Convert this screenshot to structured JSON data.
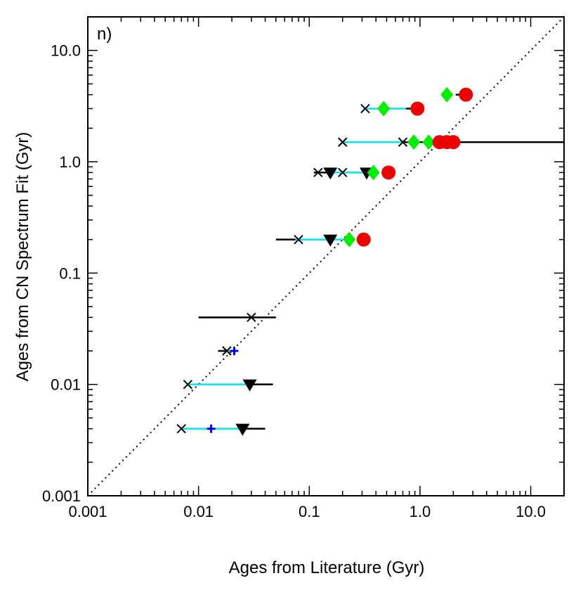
{
  "chart_data": {
    "type": "scatter",
    "panel_label": "n)",
    "xlabel": "Ages from Literature (Gyr)",
    "ylabel": "Ages from CN Spectrum Fit (Gyr)",
    "xscale": "log",
    "yscale": "log",
    "xlim": [
      0.001,
      20
    ],
    "ylim": [
      0.001,
      20
    ],
    "x_ticks": [
      {
        "value": 0.001,
        "label": "0.001"
      },
      {
        "value": 0.01,
        "label": "0.01"
      },
      {
        "value": 0.1,
        "label": "0.1"
      },
      {
        "value": 1,
        "label": "1.0"
      },
      {
        "value": 10,
        "label": "10.0"
      }
    ],
    "y_ticks": [
      {
        "value": 0.001,
        "label": "0.001"
      },
      {
        "value": 0.01,
        "label": "0.01"
      },
      {
        "value": 0.1,
        "label": "0.1"
      },
      {
        "value": 1,
        "label": "1.0"
      },
      {
        "value": 10,
        "label": "10.0"
      }
    ],
    "reference_line": {
      "style": "dotted",
      "relation": "y = x"
    },
    "colors": {
      "cyan_range": "#00e5ee",
      "black_range": "#000000",
      "green": "#00ee00",
      "red": "#ee0000",
      "blue": "#0000ee",
      "black": "#000000"
    },
    "rows": [
      {
        "y": 4.0,
        "segments": [
          {
            "color": "black_range",
            "x1": 2.1,
            "x2": 2.5
          }
        ],
        "markers": [
          {
            "shape": "diamond",
            "color": "green",
            "x": 1.75
          },
          {
            "shape": "circle",
            "color": "red",
            "x": 2.6
          }
        ]
      },
      {
        "y": 3.0,
        "segments": [
          {
            "color": "cyan_range",
            "x1": 0.32,
            "x2": 0.75
          },
          {
            "color": "black_range",
            "x1": 0.75,
            "x2": 0.9
          }
        ],
        "markers": [
          {
            "shape": "x",
            "color": "black",
            "x": 0.32
          },
          {
            "shape": "diamond",
            "color": "green",
            "x": 0.47
          },
          {
            "shape": "circle",
            "color": "red",
            "x": 0.95
          }
        ]
      },
      {
        "y": 1.5,
        "segments": [
          {
            "color": "cyan_range",
            "x1": 0.2,
            "x2": 0.7
          },
          {
            "color": "black_range",
            "x1": 0.7,
            "x2": 1.5
          },
          {
            "color": "black_range",
            "x1": 1.8,
            "x2": 20
          }
        ],
        "markers": [
          {
            "shape": "x",
            "color": "black",
            "x": 0.2
          },
          {
            "shape": "x",
            "color": "black",
            "x": 0.7
          },
          {
            "shape": "diamond",
            "color": "green",
            "x": 0.88
          },
          {
            "shape": "diamond",
            "color": "green",
            "x": 1.2
          },
          {
            "shape": "circle",
            "color": "red",
            "x": 1.5
          },
          {
            "shape": "circle",
            "color": "red",
            "x": 1.75
          },
          {
            "shape": "circle",
            "color": "red",
            "x": 2.0
          }
        ]
      },
      {
        "y": 0.8,
        "segments": [
          {
            "color": "black_range",
            "x1": 0.11,
            "x2": 0.16
          },
          {
            "color": "cyan_range",
            "x1": 0.16,
            "x2": 0.2
          },
          {
            "color": "cyan_range",
            "x1": 0.2,
            "x2": 0.38
          }
        ],
        "markers": [
          {
            "shape": "x",
            "color": "black",
            "x": 0.12
          },
          {
            "shape": "triangle-down",
            "color": "black",
            "x": 0.155
          },
          {
            "shape": "x",
            "color": "black",
            "x": 0.2
          },
          {
            "shape": "triangle-down",
            "color": "black",
            "x": 0.33
          },
          {
            "shape": "diamond",
            "color": "green",
            "x": 0.38
          },
          {
            "shape": "circle",
            "color": "red",
            "x": 0.52
          }
        ]
      },
      {
        "y": 0.2,
        "segments": [
          {
            "color": "black_range",
            "x1": 0.05,
            "x2": 0.075
          },
          {
            "color": "cyan_range",
            "x1": 0.075,
            "x2": 0.15
          },
          {
            "color": "cyan_range",
            "x1": 0.15,
            "x2": 0.23
          }
        ],
        "markers": [
          {
            "shape": "x",
            "color": "black",
            "x": 0.08
          },
          {
            "shape": "triangle-down",
            "color": "black",
            "x": 0.155
          },
          {
            "shape": "diamond",
            "color": "green",
            "x": 0.23
          },
          {
            "shape": "circle",
            "color": "red",
            "x": 0.31
          }
        ]
      },
      {
        "y": 0.04,
        "segments": [
          {
            "color": "black_range",
            "x1": 0.01,
            "x2": 0.05
          }
        ],
        "markers": [
          {
            "shape": "x",
            "color": "black",
            "x": 0.03
          }
        ]
      },
      {
        "y": 0.02,
        "segments": [
          {
            "color": "black_range",
            "x1": 0.015,
            "x2": 0.018
          },
          {
            "color": "cyan_range",
            "x1": 0.018,
            "x2": 0.021
          }
        ],
        "markers": [
          {
            "shape": "x",
            "color": "black",
            "x": 0.018
          },
          {
            "shape": "plus",
            "color": "blue",
            "x": 0.021
          }
        ]
      },
      {
        "y": 0.01,
        "segments": [
          {
            "color": "cyan_range",
            "x1": 0.008,
            "x2": 0.028
          },
          {
            "color": "black_range",
            "x1": 0.028,
            "x2": 0.047
          }
        ],
        "markers": [
          {
            "shape": "x",
            "color": "black",
            "x": 0.008
          },
          {
            "shape": "triangle-down",
            "color": "black",
            "x": 0.029
          }
        ]
      },
      {
        "y": 0.004,
        "segments": [
          {
            "color": "cyan_range",
            "x1": 0.007,
            "x2": 0.025
          },
          {
            "color": "black_range",
            "x1": 0.025,
            "x2": 0.04
          }
        ],
        "markers": [
          {
            "shape": "x",
            "color": "black",
            "x": 0.007
          },
          {
            "shape": "plus",
            "color": "blue",
            "x": 0.013
          },
          {
            "shape": "triangle-down",
            "color": "black",
            "x": 0.025
          }
        ]
      }
    ]
  }
}
